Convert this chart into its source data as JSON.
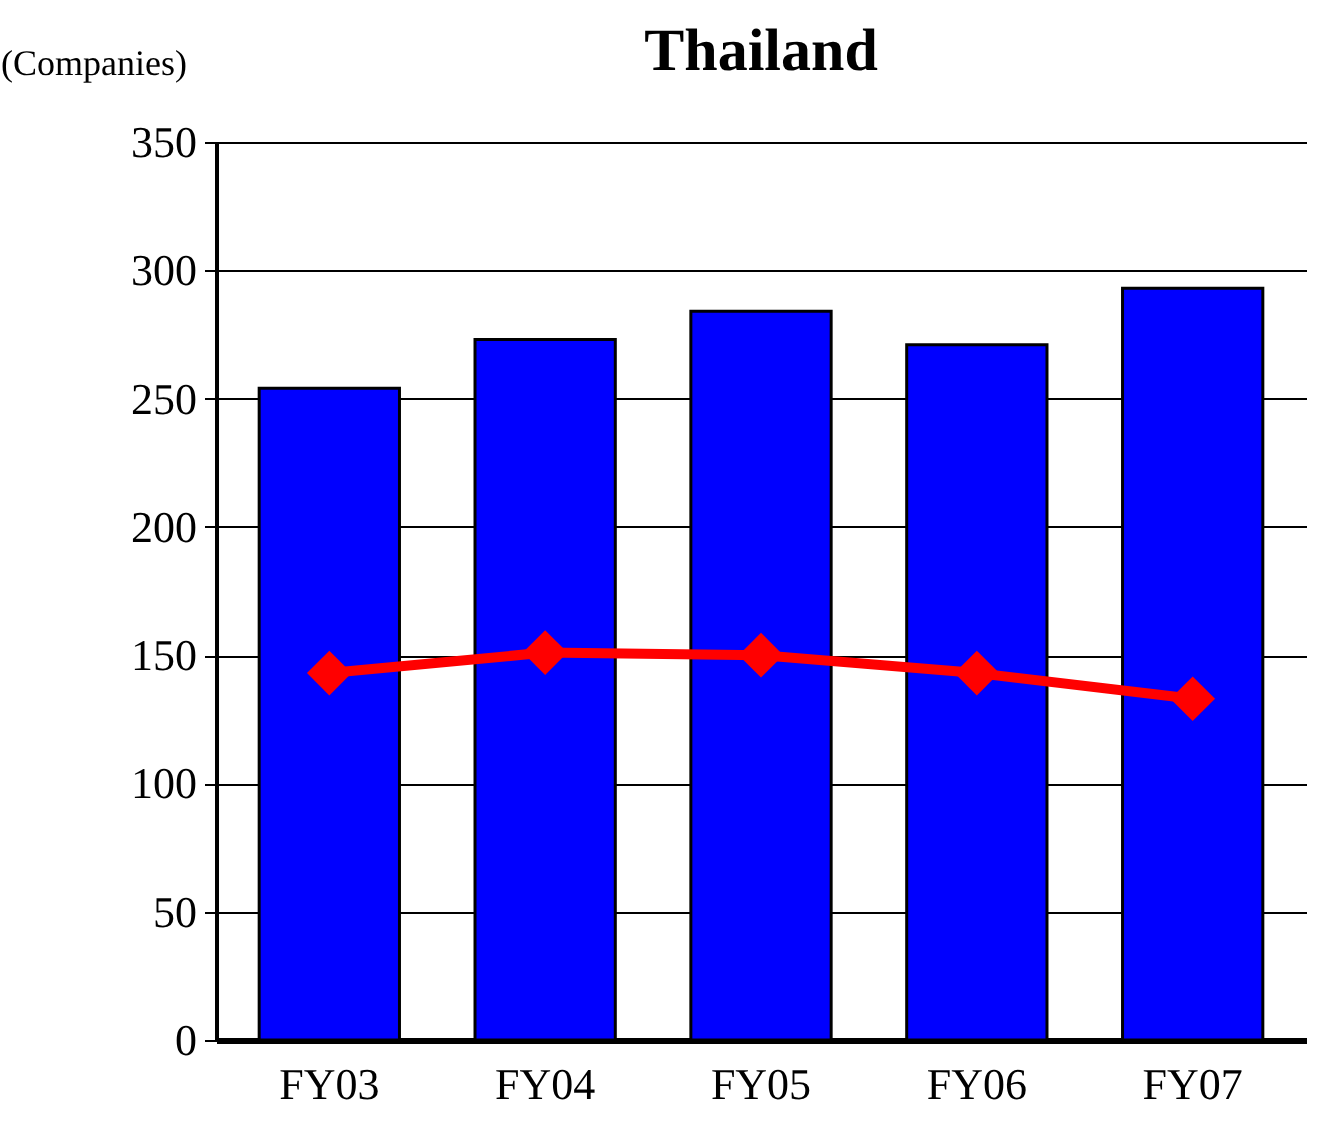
{
  "chart_data": {
    "type": "bar",
    "title": "Thailand",
    "ylabel": "(Companies)",
    "categories": [
      "FY03",
      "FY04",
      "FY05",
      "FY06",
      "FY07"
    ],
    "series": [
      {
        "color": "#0000ff",
        "values": [
          254,
          273,
          284,
          271,
          293
        ]
      },
      {
        "type": "line",
        "color": "#ff0000",
        "values": [
          143,
          151,
          150,
          143,
          133
        ],
        "marker": "diamond"
      }
    ],
    "ylim": [
      0,
      350
    ],
    "yticks": [
      0,
      50,
      100,
      150,
      200,
      250,
      300,
      350
    ],
    "grid": "y"
  }
}
